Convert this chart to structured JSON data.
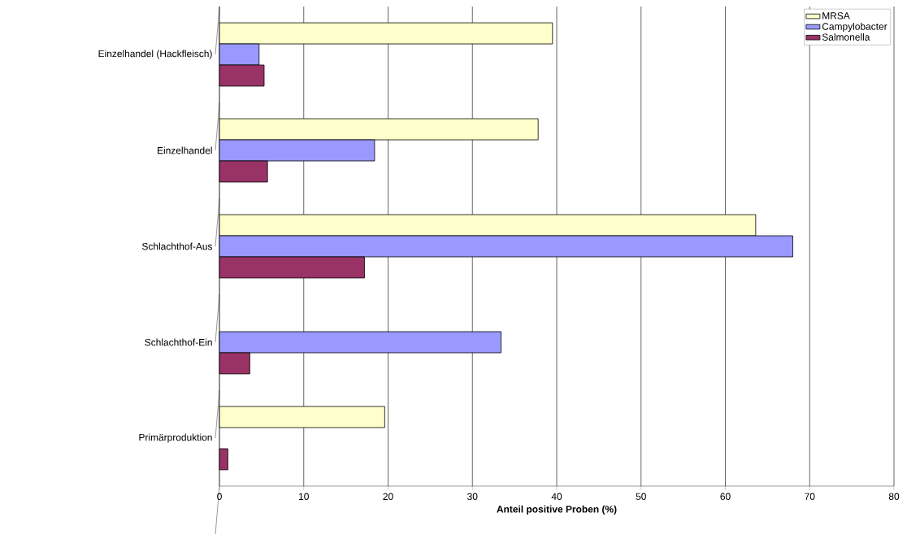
{
  "chart_data": {
    "type": "bar",
    "orientation": "horizontal",
    "categories": [
      "Einzelhandel (Hackfleisch)",
      "Einzelhandel",
      "Schlachthof-Aus",
      "Schlachthof-Ein",
      "Primärproduktion"
    ],
    "series": [
      {
        "name": "MRSA",
        "color": "#ffffcc",
        "values": [
          39.5,
          37.8,
          63.6,
          null,
          19.6
        ]
      },
      {
        "name": "Campylobacter",
        "color": "#9999ff",
        "values": [
          4.7,
          18.4,
          68.0,
          33.4,
          null
        ]
      },
      {
        "name": "Salmonella",
        "color": "#993366",
        "values": [
          5.3,
          5.7,
          17.2,
          3.6,
          1.0
        ]
      }
    ],
    "xlim": [
      0,
      80
    ],
    "xticks": [
      0,
      10,
      20,
      30,
      40,
      50,
      60,
      70,
      80
    ],
    "xlabel": "Anteil positive Proben (%)",
    "grid": "x",
    "legend": "top right"
  }
}
